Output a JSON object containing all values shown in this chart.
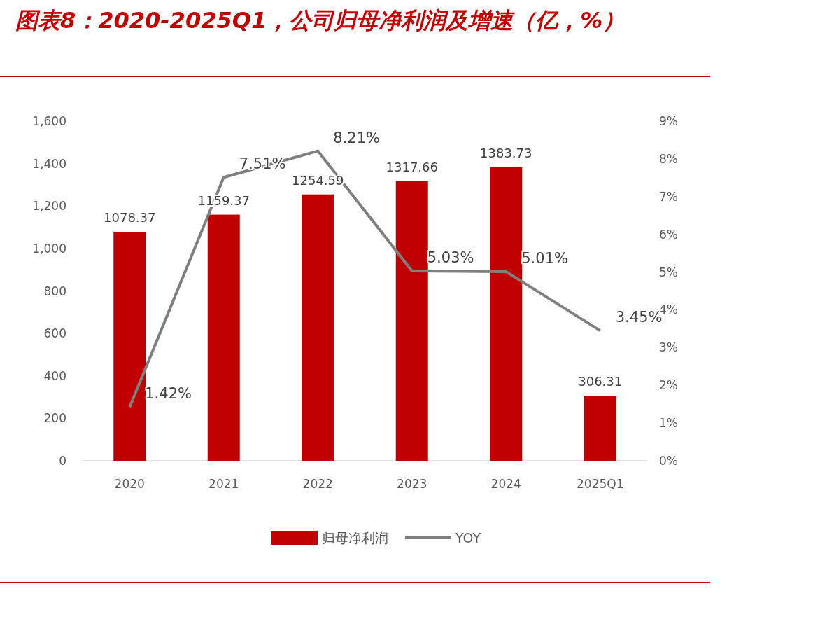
{
  "chart_data": {
    "type": "bar",
    "title": "图表8：2020-2025Q1，公司归母净利润及增速（亿，%）",
    "categories": [
      "2020",
      "2021",
      "2022",
      "2023",
      "2024",
      "2025Q1"
    ],
    "series": [
      {
        "name": "归母净利润",
        "color": "#c00000",
        "values": [
          1078.37,
          1159.37,
          1254.59,
          1317.66,
          1383.73,
          306.31
        ],
        "value_labels": [
          "1078.37",
          "1159.37",
          "1254.59",
          "1317.66",
          "1383.73",
          "306.31"
        ]
      },
      {
        "name": "YOY",
        "type": "line",
        "axis": "y2",
        "color": "#7f7f7f",
        "values": [
          1.42,
          7.51,
          8.21,
          5.03,
          5.01,
          3.45
        ],
        "value_labels": [
          "1.42%",
          "7.51%",
          "8.21%",
          "5.03%",
          "5.01%",
          "3.45%"
        ]
      }
    ],
    "ylim": [
      0,
      1600
    ],
    "yticks": [
      0,
      200,
      400,
      600,
      800,
      {
        "value": 1000,
        "label": "1,000"
      },
      {
        "value": 1200,
        "label": "1,200"
      },
      {
        "value": 1400,
        "label": "1,400"
      },
      {
        "value": 1600,
        "label": "1,600"
      }
    ],
    "y2lim": [
      0,
      9
    ],
    "y2ticks": [
      {
        "value": 0,
        "label": "0%"
      },
      {
        "value": 1,
        "label": "1%"
      },
      {
        "value": 2,
        "label": "2%"
      },
      {
        "value": 3,
        "label": "3%"
      },
      {
        "value": 4,
        "label": "4%"
      },
      {
        "value": 5,
        "label": "5%"
      },
      {
        "value": 6,
        "label": "6%"
      },
      {
        "value": 7,
        "label": "7%"
      },
      {
        "value": 8,
        "label": "8%"
      },
      {
        "value": 9,
        "label": "9%"
      }
    ],
    "legend": "bottom"
  }
}
